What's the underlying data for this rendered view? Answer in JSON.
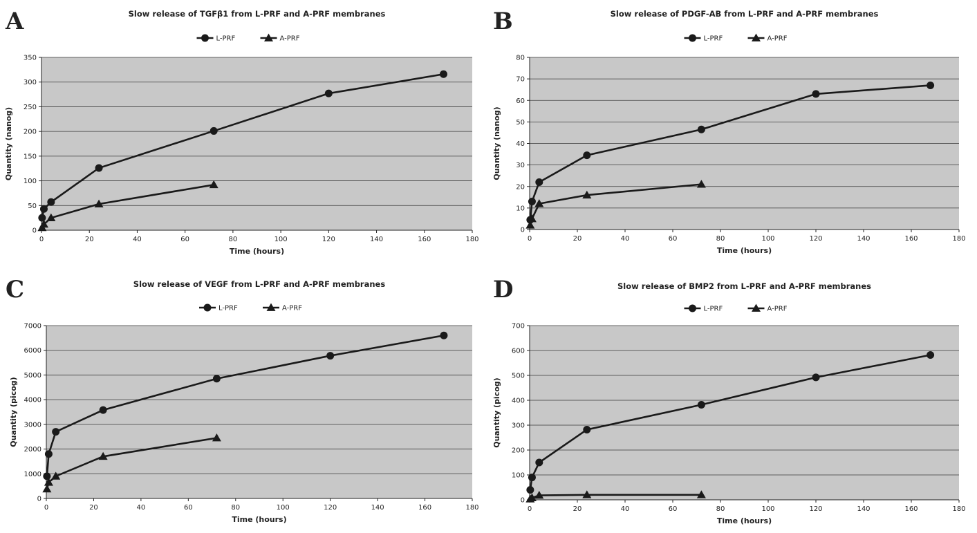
{
  "chart_data": [
    {
      "panel_label": "A",
      "type": "line",
      "title": "Slow release of TGFβ1 from L-PRF and A-PRF membranes",
      "xlabel": "Time (hours)",
      "ylabel": "Quantity (nanog)",
      "xlim": [
        0,
        180
      ],
      "ylim": [
        0,
        350
      ],
      "x_ticks": [
        0,
        20,
        40,
        60,
        80,
        100,
        120,
        140,
        160,
        180
      ],
      "y_ticks": [
        0,
        50,
        100,
        150,
        200,
        250,
        300,
        350
      ],
      "grid": "horizontal",
      "legend_position": "top-center",
      "series": [
        {
          "name": "L-PRF",
          "marker": "circle",
          "x": [
            0.25,
            1,
            4,
            24,
            72,
            120,
            168
          ],
          "y": [
            25,
            43,
            57,
            126,
            201,
            277,
            316
          ]
        },
        {
          "name": "A-PRF",
          "marker": "triangle",
          "x": [
            0.25,
            1,
            4,
            24,
            72
          ],
          "y": [
            5,
            12,
            25,
            53,
            92
          ]
        }
      ]
    },
    {
      "panel_label": "B",
      "type": "line",
      "title": "Slow release of PDGF-AB from L-PRF and A-PRF membranes",
      "xlabel": "Time (hours)",
      "ylabel": "Quantity (nanog)",
      "xlim": [
        0,
        180
      ],
      "ylim": [
        0,
        80
      ],
      "x_ticks": [
        0,
        20,
        40,
        60,
        80,
        100,
        120,
        140,
        160,
        180
      ],
      "y_ticks": [
        0,
        10,
        20,
        30,
        40,
        50,
        60,
        70,
        80
      ],
      "grid": "horizontal",
      "legend_position": "top-center",
      "series": [
        {
          "name": "L-PRF",
          "marker": "circle",
          "x": [
            0.25,
            1,
            4,
            24,
            72,
            120,
            168
          ],
          "y": [
            4.5,
            13,
            22,
            34.5,
            46.5,
            63,
            67
          ]
        },
        {
          "name": "A-PRF",
          "marker": "triangle",
          "x": [
            0.25,
            1,
            4,
            24,
            72
          ],
          "y": [
            2,
            5,
            12,
            16,
            21
          ]
        }
      ]
    },
    {
      "panel_label": "C",
      "type": "line",
      "title": "Slow release of VEGF from L-PRF and A-PRF membranes",
      "xlabel": "Time (hours)",
      "ylabel": "Quantity (picog)",
      "xlim": [
        0,
        180
      ],
      "ylim": [
        0,
        7000
      ],
      "x_ticks": [
        0,
        20,
        40,
        60,
        80,
        100,
        120,
        140,
        160,
        180
      ],
      "y_ticks": [
        0,
        1000,
        2000,
        3000,
        4000,
        5000,
        6000,
        7000
      ],
      "grid": "horizontal",
      "legend_position": "top-center",
      "series": [
        {
          "name": "L-PRF",
          "marker": "circle",
          "x": [
            0.25,
            1,
            4,
            24,
            72,
            120,
            168
          ],
          "y": [
            900,
            1800,
            2700,
            3580,
            4850,
            5780,
            6600
          ]
        },
        {
          "name": "A-PRF",
          "marker": "triangle",
          "x": [
            0.25,
            1,
            4,
            24,
            72
          ],
          "y": [
            380,
            650,
            900,
            1700,
            2450
          ]
        }
      ]
    },
    {
      "panel_label": "D",
      "type": "line",
      "title": "Slow release of BMP2 from L-PRF and A-PRF membranes",
      "xlabel": "Time (hours)",
      "ylabel": "Quantity (picog)",
      "xlim": [
        0,
        180
      ],
      "ylim": [
        0,
        700
      ],
      "x_ticks": [
        0,
        20,
        40,
        60,
        80,
        100,
        120,
        140,
        160,
        180
      ],
      "y_ticks": [
        0,
        100,
        200,
        300,
        400,
        500,
        600,
        700
      ],
      "grid": "horizontal",
      "legend_position": "top-center",
      "series": [
        {
          "name": "L-PRF",
          "marker": "circle",
          "x": [
            0.25,
            1,
            4,
            24,
            72,
            120,
            168
          ],
          "y": [
            40,
            90,
            150,
            282,
            382,
            492,
            582
          ]
        },
        {
          "name": "A-PRF",
          "marker": "triangle",
          "x": [
            0.25,
            1,
            4,
            24,
            72
          ],
          "y": [
            3,
            8,
            18,
            20,
            20
          ]
        }
      ]
    }
  ]
}
